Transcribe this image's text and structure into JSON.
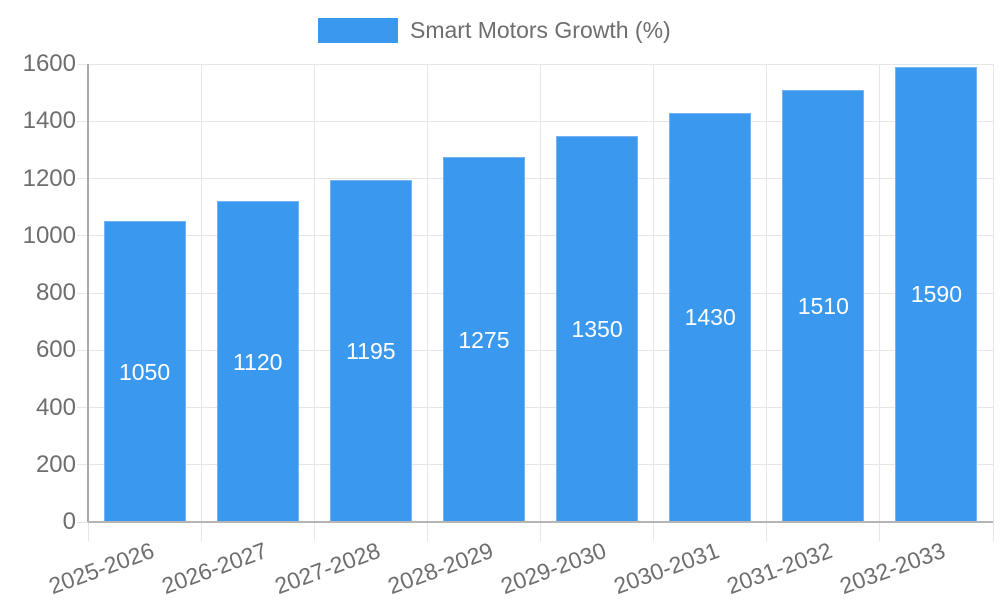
{
  "chart_data": {
    "type": "bar",
    "categories": [
      "2025-2026",
      "2026-2027",
      "2027-2028",
      "2028-2029",
      "2029-2030",
      "2030-2031",
      "2031-2032",
      "2032-2033"
    ],
    "series": [
      {
        "name": "Smart Motors Growth (%)",
        "values": [
          1050,
          1120,
          1195,
          1275,
          1350,
          1430,
          1510,
          1590
        ]
      }
    ],
    "title": "",
    "xlabel": "",
    "ylabel": "",
    "ylim": [
      0,
      1600
    ],
    "ytick_step": 200,
    "grid": true,
    "legend_position": "top",
    "bar_label_position": "inside-center",
    "colors": {
      "bar": "#3a99ee",
      "bar_edge": "#76b3f3",
      "grid": "#e6e6e6",
      "tick": "#e0e0e0",
      "baseline": "#b5b5b5",
      "axis_line": "#a8a8a8",
      "axis_text": "#6e6e6e",
      "bar_label_text": "#ffffff",
      "background": "#ffffff"
    }
  }
}
